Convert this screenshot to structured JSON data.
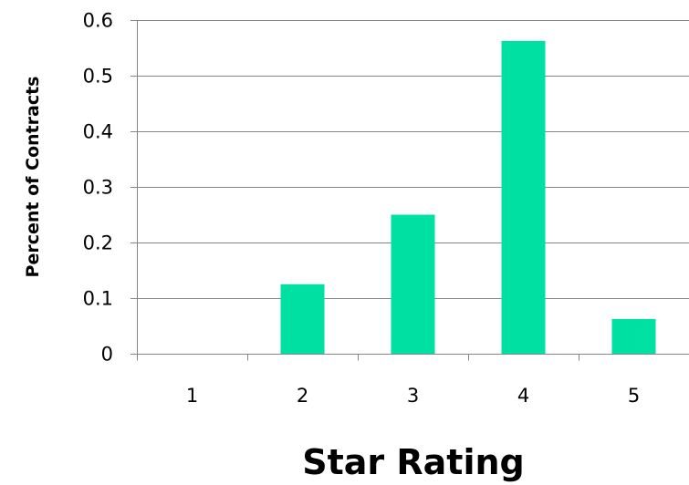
{
  "chart_data": {
    "type": "bar",
    "categories": [
      "1",
      "2",
      "3",
      "4",
      "5"
    ],
    "values": [
      0,
      0.125,
      0.25,
      0.5625,
      0.0625
    ],
    "title": "",
    "xlabel": "Star Rating",
    "ylabel": "Percent of Contracts",
    "ylim": [
      0,
      0.6
    ],
    "yticks": [
      "0",
      "0.1",
      "0.2",
      "0.3",
      "0.4",
      "0.5",
      "0.6"
    ],
    "grid": true,
    "legend": "none",
    "bar_color": "#00E0A2",
    "grid_color": "#868686",
    "axis_color": "#868686"
  }
}
